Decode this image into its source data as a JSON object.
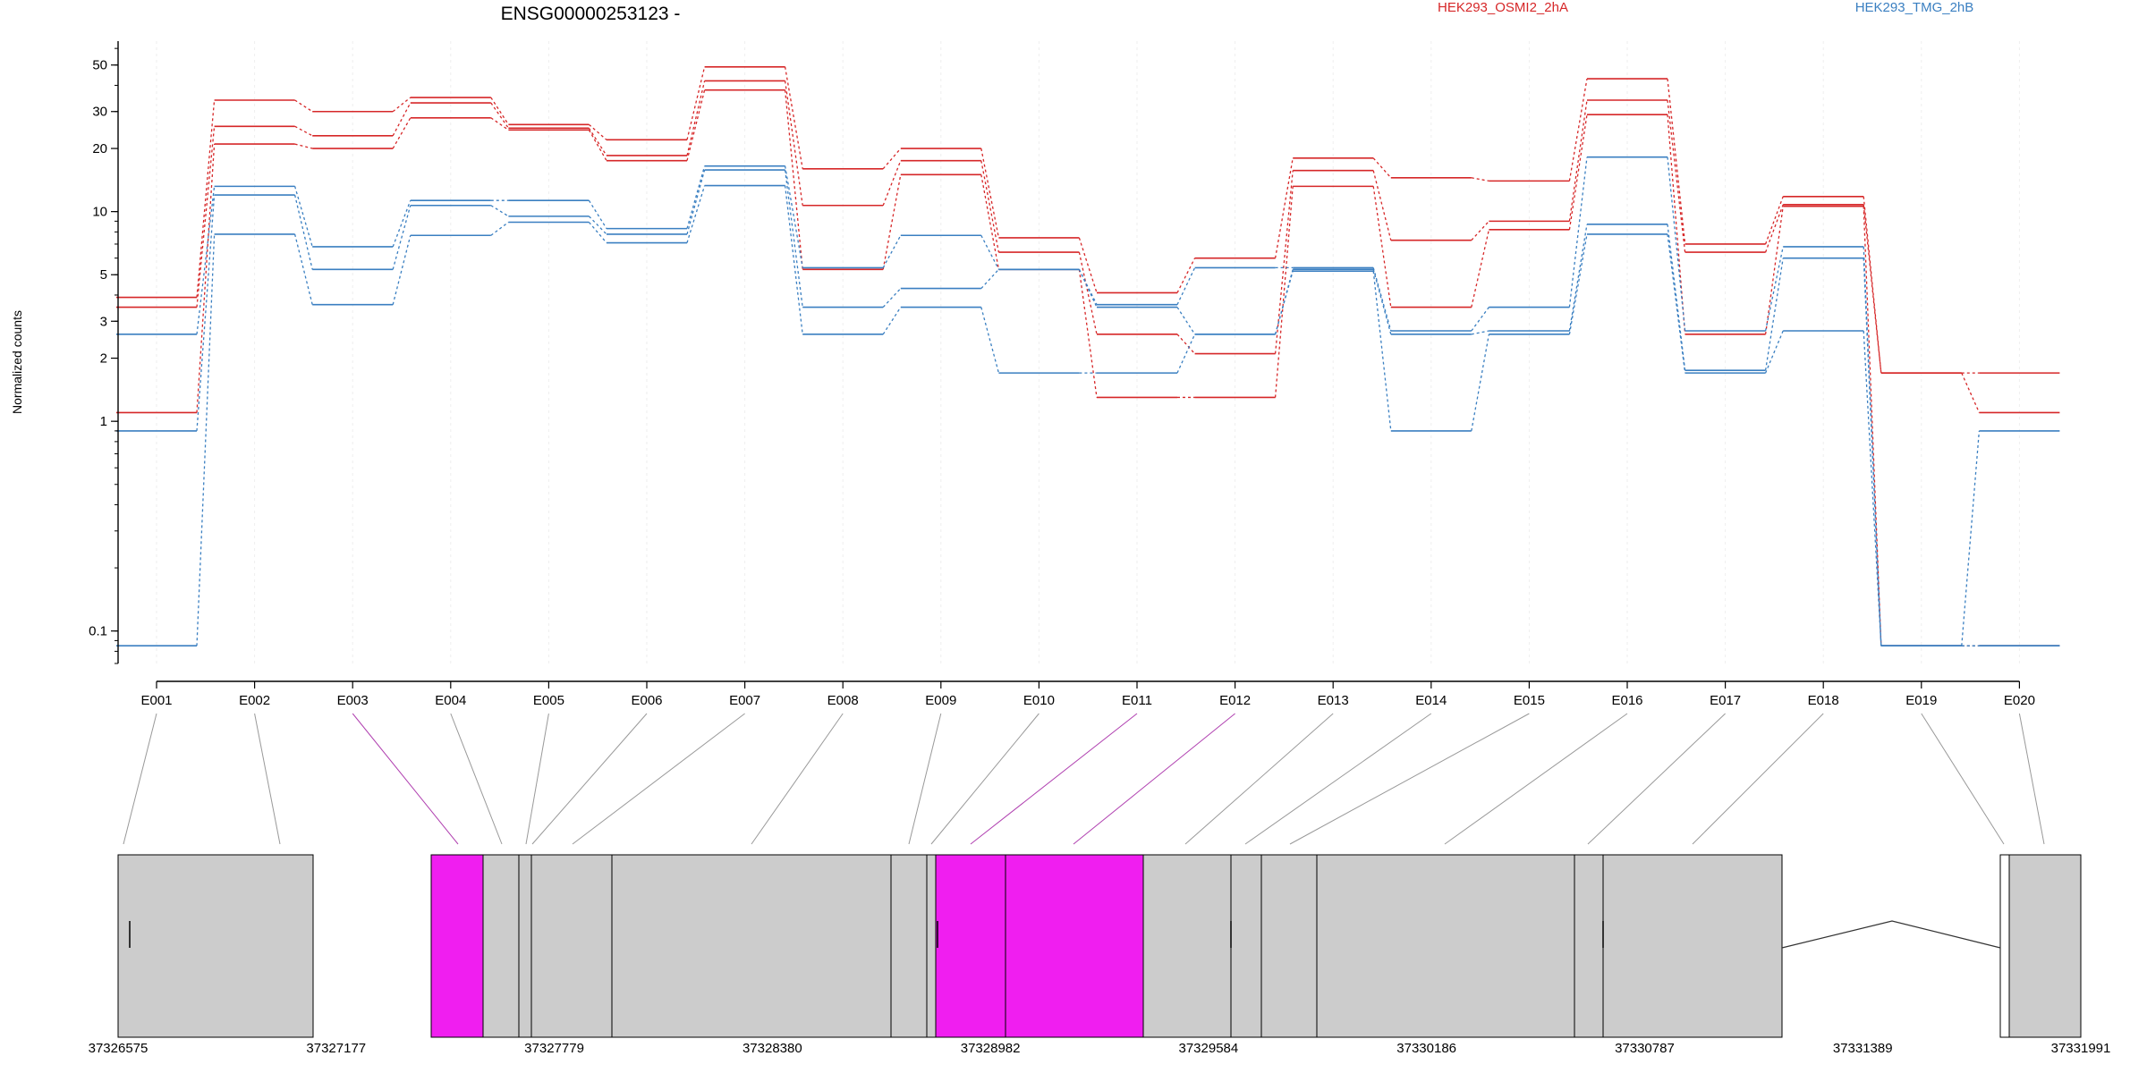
{
  "chart_data": {
    "type": "line",
    "title": "ENSG00000253123 -",
    "ylabel": "Normalized counts",
    "xlabel": "",
    "yscale": "log",
    "ylim": [
      0.07,
      65
    ],
    "yticks": [
      {
        "value": 0.1,
        "label": "0.1"
      },
      {
        "value": 1,
        "label": "1"
      },
      {
        "value": 2,
        "label": "2"
      },
      {
        "value": 3,
        "label": "3"
      },
      {
        "value": 5,
        "label": "5"
      },
      {
        "value": 10,
        "label": "10"
      },
      {
        "value": 20,
        "label": "20"
      },
      {
        "value": 30,
        "label": "30"
      },
      {
        "value": 50,
        "label": "50"
      }
    ],
    "categories": [
      "E001",
      "E002",
      "E003",
      "E004",
      "E005",
      "E006",
      "E007",
      "E008",
      "E009",
      "E010",
      "E011",
      "E012",
      "E013",
      "E014",
      "E015",
      "E016",
      "E017",
      "E018",
      "E019",
      "E020"
    ],
    "legend": [
      {
        "label": "HEK293_OSMI2_2hA",
        "color": "#d62728"
      },
      {
        "label": "HEK293_TMG_2hB",
        "color": "#3a7fc1"
      }
    ],
    "series": [
      {
        "group": "red",
        "color": "#d62728",
        "values": [
          3.9,
          34,
          30,
          35,
          26,
          22,
          49,
          16,
          20,
          7.5,
          4.1,
          6.0,
          18,
          14.5,
          14,
          43,
          7.0,
          11.8,
          1.7,
          1.7
        ]
      },
      {
        "group": "red",
        "color": "#d62728",
        "values": [
          3.5,
          25.5,
          23,
          33,
          25,
          18.5,
          42,
          10.7,
          17.5,
          6.4,
          2.6,
          2.1,
          15.7,
          7.3,
          9.0,
          34,
          6.4,
          10.8,
          1.7,
          1.1
        ]
      },
      {
        "group": "red",
        "color": "#d62728",
        "values": [
          1.1,
          21,
          20,
          28,
          24.5,
          17.5,
          38,
          5.3,
          15,
          5.3,
          1.3,
          1.3,
          13.2,
          3.5,
          8.2,
          29,
          2.6,
          10.6,
          0.085,
          0.085
        ]
      },
      {
        "group": "blue",
        "color": "#3a7fc1",
        "values": [
          2.6,
          13.2,
          6.8,
          11.3,
          11.3,
          8.3,
          16.5,
          5.4,
          7.7,
          5.3,
          3.6,
          5.4,
          5.4,
          2.7,
          3.5,
          18.2,
          2.7,
          6.8,
          0.085,
          0.085
        ]
      },
      {
        "group": "blue",
        "color": "#3a7fc1",
        "values": [
          0.9,
          12,
          5.3,
          10.7,
          9.5,
          7.8,
          15.8,
          3.5,
          4.3,
          5.3,
          3.5,
          2.6,
          5.3,
          2.6,
          2.7,
          8.7,
          1.75,
          6.0,
          0.085,
          0.9
        ]
      },
      {
        "group": "blue",
        "color": "#3a7fc1",
        "values": [
          0.085,
          7.8,
          3.6,
          7.7,
          8.9,
          7.1,
          13.3,
          2.6,
          3.5,
          1.7,
          1.7,
          2.6,
          5.2,
          0.9,
          2.6,
          7.8,
          1.7,
          2.7,
          0.085,
          0.085
        ]
      }
    ],
    "gene_model": {
      "coord_labels": [
        "37326575",
        "37327177",
        "37327779",
        "37328380",
        "37328982",
        "37329584",
        "37330186",
        "37330787",
        "37331389",
        "37331991"
      ],
      "highlight_color": "#f01ef0",
      "exon_color": "#cccccc",
      "highlighted_exons": [
        "E003",
        "E011",
        "E012"
      ]
    },
    "grid": true,
    "legend_position": "top"
  }
}
